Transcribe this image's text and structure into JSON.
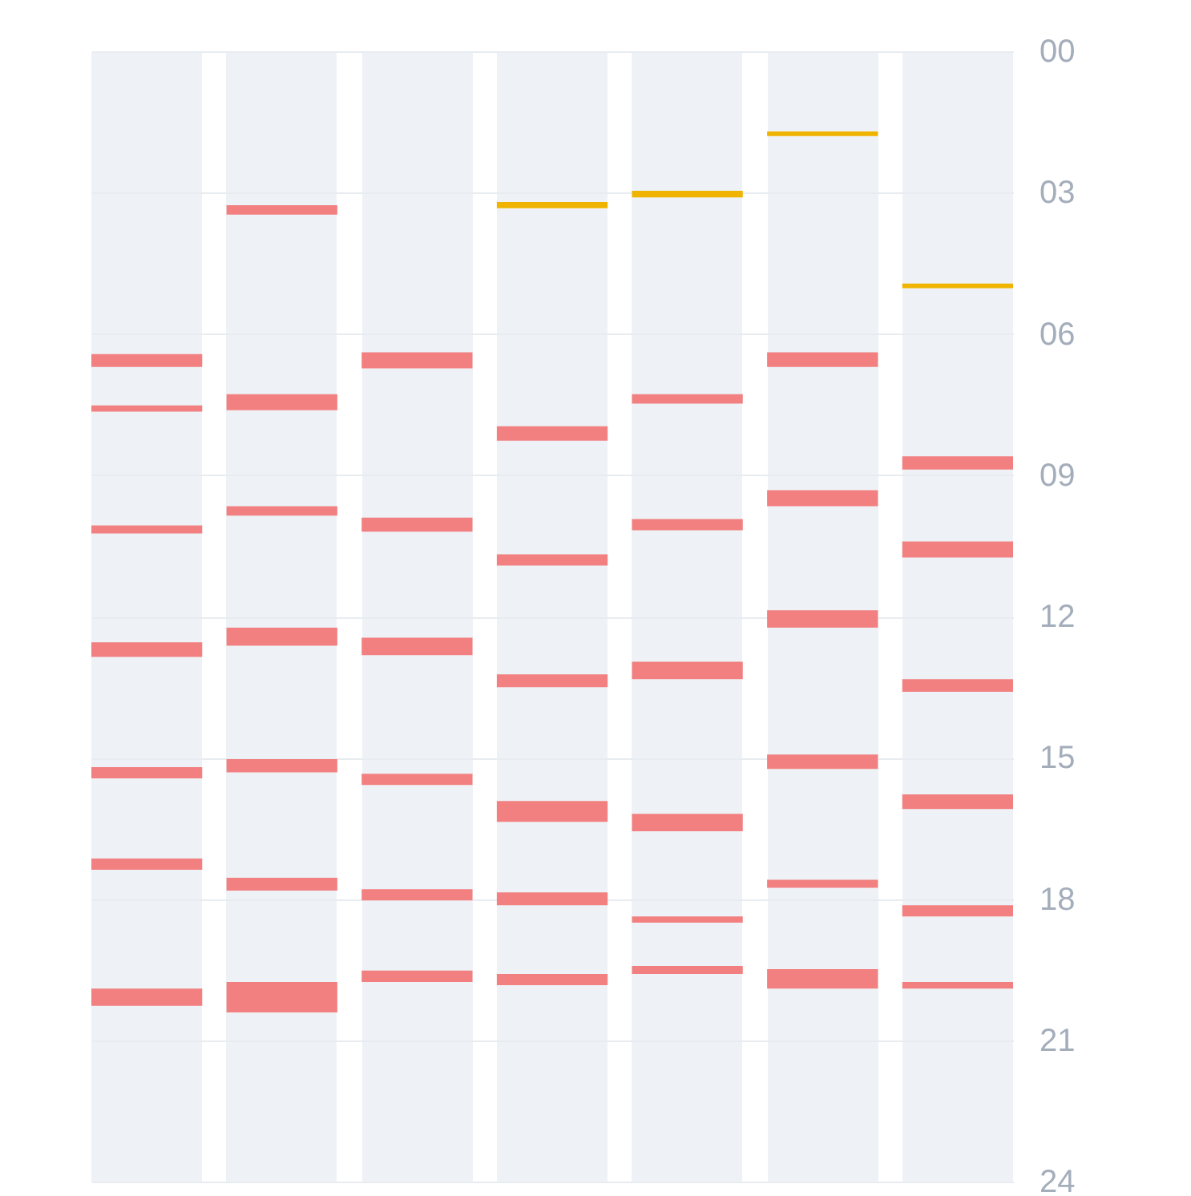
{
  "chart_data": {
    "type": "bar",
    "categories": [
      null,
      null,
      null,
      null,
      null,
      null,
      null
    ],
    "ylim": [
      24,
      0
    ],
    "yticks": [
      {
        "value": 0,
        "label": "00"
      },
      {
        "value": 3,
        "label": "03"
      },
      {
        "value": 6,
        "label": "06"
      },
      {
        "value": 9,
        "label": "09"
      },
      {
        "value": 12,
        "label": "12"
      },
      {
        "value": 15,
        "label": "15"
      },
      {
        "value": 18,
        "label": "18"
      },
      {
        "value": 21,
        "label": "21"
      },
      {
        "value": 24,
        "label": "24"
      }
    ],
    "grid": "y",
    "tick_labels": "y",
    "series": [
      {
        "color": "#f0b400",
        "base": [
          null,
          null,
          null,
          3.2,
          2.96,
          1.7,
          4.93
        ],
        "values": [
          null,
          null,
          null,
          0.13,
          0.14,
          0.1,
          0.1
        ]
      },
      {
        "color": "#f28080",
        "base": [
          6.43,
          3.27,
          6.39,
          7.96,
          7.28,
          6.39,
          8.6
        ],
        "values": [
          0.27,
          0.2,
          0.34,
          0.31,
          0.2,
          0.31,
          0.28
        ]
      },
      {
        "color": "#f28080",
        "base": [
          7.52,
          7.28,
          9.9,
          10.68,
          9.93,
          9.32,
          10.41
        ],
        "values": [
          0.13,
          0.34,
          0.3,
          0.24,
          0.24,
          0.34,
          0.34
        ]
      },
      {
        "color": "#f28080",
        "base": [
          10.07,
          9.66,
          12.45,
          13.23,
          12.96,
          11.87,
          13.33
        ],
        "values": [
          0.17,
          0.2,
          0.37,
          0.27,
          0.37,
          0.37,
          0.27
        ]
      },
      {
        "color": "#f28080",
        "base": [
          12.55,
          12.24,
          15.34,
          15.92,
          16.19,
          14.93,
          15.78
        ],
        "values": [
          0.31,
          0.38,
          0.24,
          0.44,
          0.37,
          0.31,
          0.31
        ]
      },
      {
        "color": "#f28080",
        "base": [
          15.2,
          15.03,
          17.79,
          17.86,
          18.37,
          17.59,
          18.13
        ],
        "values": [
          0.24,
          0.28,
          0.24,
          0.27,
          0.13,
          0.17,
          0.24
        ]
      },
      {
        "color": "#f28080",
        "base": [
          17.14,
          17.55,
          19.52,
          19.59,
          19.42,
          19.49,
          19.76
        ],
        "values": [
          0.24,
          0.27,
          0.24,
          0.24,
          0.17,
          0.41,
          0.14
        ]
      },
      {
        "color": "#f28080",
        "base": [
          19.9,
          19.76,
          null,
          null,
          null,
          null,
          null
        ],
        "values": [
          0.37,
          0.65,
          null,
          null,
          null,
          null,
          null
        ]
      }
    ]
  }
}
